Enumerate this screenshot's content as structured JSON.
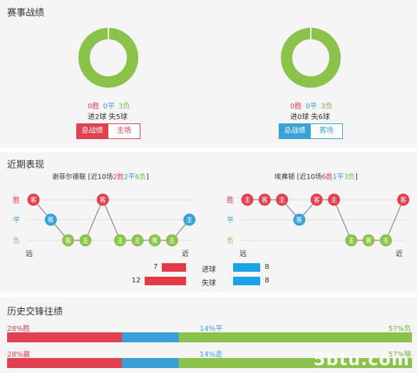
{
  "colors": {
    "win": "#e04050",
    "draw": "#3aa0d8",
    "loss": "#8bc34a",
    "ring": "#8bc34a",
    "blue_bar": "#1aa3e8"
  },
  "record": {
    "title": "赛事战绩",
    "home": {
      "win": "0胜",
      "draw": "0平",
      "loss": "3负",
      "goals": "进2球 失5球",
      "win_pct": 0,
      "draw_pct": 0,
      "loss_pct": 100,
      "tab_all": "总战绩",
      "tab_side": "主场"
    },
    "away": {
      "win": "0胜",
      "draw": "0平",
      "loss": "3负",
      "goals": "进0球 失6球",
      "win_pct": 0,
      "draw_pct": 0,
      "loss_pct": 100,
      "tab_all": "总战绩",
      "tab_side": "客场"
    }
  },
  "recent": {
    "title": "近期表现",
    "axis": {
      "win": "胜",
      "draw": "平",
      "loss": "负",
      "far": "远",
      "near": "近"
    },
    "home": {
      "team": "谢菲尔德联",
      "summary": {
        "open": " [近10场",
        "wins": "2胜",
        "draws": "2平",
        "losses": "6负",
        "close": "]"
      },
      "matches": [
        {
          "result": "win",
          "venue": "客"
        },
        {
          "result": "draw",
          "venue": "客"
        },
        {
          "result": "loss",
          "venue": "客"
        },
        {
          "result": "loss",
          "venue": "主"
        },
        {
          "result": "win",
          "venue": "客"
        },
        {
          "result": "loss",
          "venue": "主"
        },
        {
          "result": "loss",
          "venue": "主"
        },
        {
          "result": "loss",
          "venue": "客"
        },
        {
          "result": "loss",
          "venue": "主"
        },
        {
          "result": "draw",
          "venue": "主"
        }
      ]
    },
    "away": {
      "team": "埃弗顿",
      "summary": {
        "open": " [近10场",
        "wins": "6胜",
        "draws": "1平",
        "losses": "3负",
        "close": "]"
      },
      "matches": [
        {
          "result": "win",
          "venue": "主"
        },
        {
          "result": "win",
          "venue": "客"
        },
        {
          "result": "win",
          "venue": "主"
        },
        {
          "result": "draw",
          "venue": "客"
        },
        {
          "result": "win",
          "venue": "客"
        },
        {
          "result": "win",
          "venue": "主"
        },
        {
          "result": "loss",
          "venue": "主"
        },
        {
          "result": "loss",
          "venue": "客"
        },
        {
          "result": "loss",
          "venue": "主"
        },
        {
          "result": "win",
          "venue": "客"
        }
      ]
    },
    "goals": {
      "label": "进球",
      "home": 7,
      "away": 8
    },
    "conceded": {
      "label": "失球",
      "home": 12,
      "away": 8
    }
  },
  "history": {
    "title": "历史交锋往绩",
    "row1": {
      "left": "28%胜",
      "mid": "14%平",
      "right": "57%负",
      "left_pct": 28,
      "mid_pct": 14,
      "right_pct": 57
    },
    "row2": {
      "left": "28%赢",
      "mid": "14%走",
      "right": "57%输",
      "left_pct": 28,
      "mid_pct": 14,
      "right_pct": 57
    }
  },
  "watermark": "5btu.com"
}
